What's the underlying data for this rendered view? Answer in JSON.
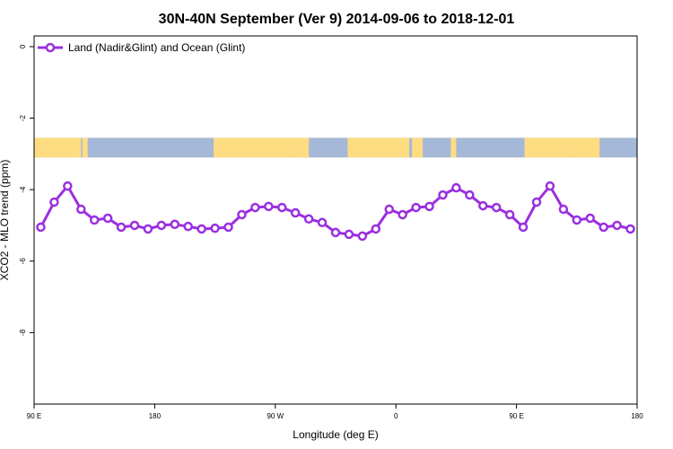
{
  "chart_data": {
    "type": "line",
    "title": "30N-40N September (Ver 9)   2014-09-06 to 2018-12-01",
    "xlabel": "Longitude (deg E)",
    "ylabel": "XCO2 - MLO trend (ppm)",
    "xlim": [
      90,
      540
    ],
    "ylim": [
      -10,
      0.3
    ],
    "x_ticks": [
      {
        "value": 90,
        "label": "90 E"
      },
      {
        "value": 180,
        "label": "180"
      },
      {
        "value": 270,
        "label": "90 W"
      },
      {
        "value": 360,
        "label": "0"
      },
      {
        "value": 450,
        "label": "90 E"
      },
      {
        "value": 540,
        "label": "180"
      }
    ],
    "y_ticks": [
      {
        "value": 0,
        "label": "0"
      },
      {
        "value": -2,
        "label": "-2"
      },
      {
        "value": -4,
        "label": "-4"
      },
      {
        "value": -6,
        "label": "-6"
      },
      {
        "value": -8,
        "label": "-8"
      }
    ],
    "legend": {
      "position": "top-left",
      "entries": [
        "Land (Nadir&Glint) and Ocean (Glint)"
      ]
    },
    "series": [
      {
        "name": "Land (Nadir&Glint) and Ocean (Glint)",
        "color": "#9b2fe0",
        "x": [
          95,
          105,
          115,
          125,
          135,
          145,
          155,
          165,
          175,
          185,
          195,
          205,
          215,
          225,
          235,
          245,
          255,
          265,
          275,
          285,
          295,
          305,
          315,
          325,
          335,
          345,
          355,
          365,
          375,
          385,
          395,
          405,
          415,
          425,
          435,
          445,
          455,
          465,
          475,
          485,
          495,
          505,
          515,
          525,
          535
        ],
        "y": [
          -5.05,
          -4.35,
          -3.9,
          -4.55,
          -4.85,
          -4.8,
          -5.05,
          -5.0,
          -5.1,
          -5.0,
          -4.97,
          -5.03,
          -5.1,
          -5.08,
          -5.05,
          -4.7,
          -4.5,
          -4.47,
          -4.5,
          -4.65,
          -4.82,
          -4.92,
          -5.2,
          -5.25,
          -5.3,
          -5.1,
          -4.55,
          -4.7,
          -4.5,
          -4.47,
          -4.15,
          -3.95,
          -4.15,
          -4.45,
          -4.5,
          -4.7,
          -5.05,
          -4.35,
          -3.9,
          -4.55,
          -4.85,
          -4.8,
          -5.05,
          -5.0,
          -5.1
        ]
      }
    ],
    "map_strip": {
      "y_range": [
        -2.55,
        -3.1
      ],
      "colors": {
        "ocean": "#a6b8d7",
        "land": "#fedc82"
      },
      "land_x_ranges": [
        [
          90,
          125
        ],
        [
          126,
          130
        ],
        [
          224,
          285
        ],
        [
          285,
          295
        ],
        [
          324,
          370
        ],
        [
          372,
          380
        ],
        [
          401,
          405
        ],
        [
          456,
          490
        ],
        [
          490,
          512
        ]
      ]
    }
  }
}
